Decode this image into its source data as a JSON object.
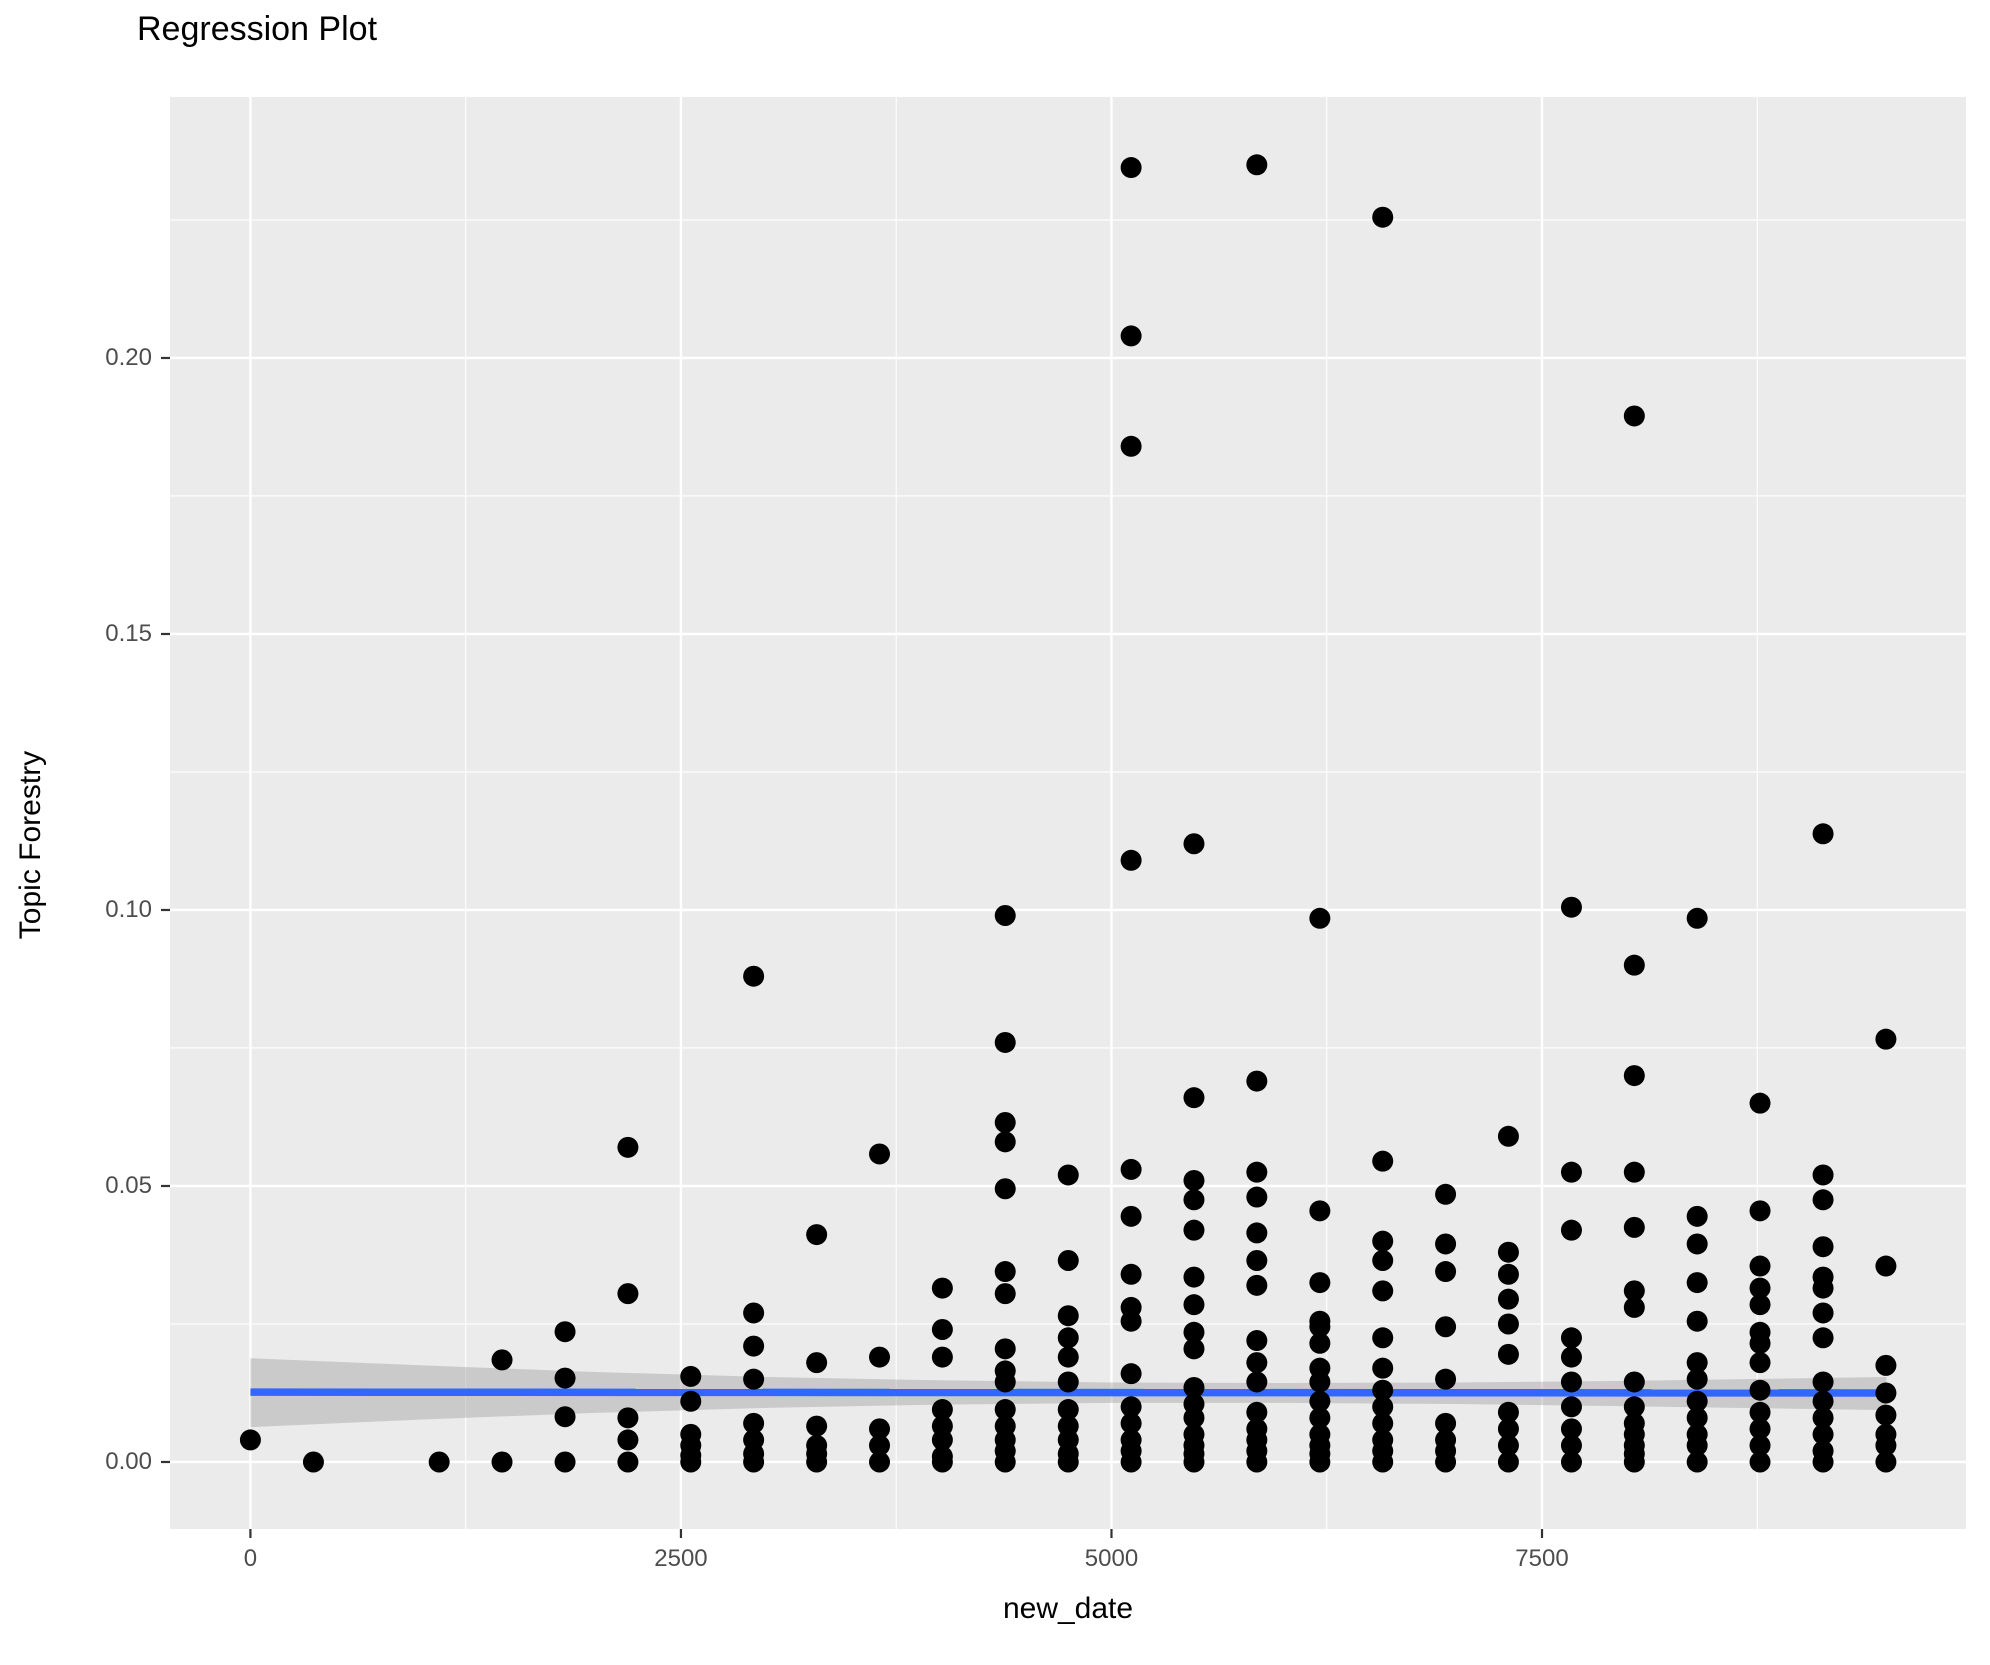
{
  "chart_data": {
    "type": "scatter",
    "title": "Regression Plot",
    "xlabel": "new_date",
    "ylabel": "Topic Forestry",
    "xlim": [
      -467,
      9962
    ],
    "ylim": [
      -0.01214,
      0.24728
    ],
    "grid": true,
    "legend": "none",
    "x_ticks": {
      "values": [
        0,
        2500,
        5000,
        7500
      ],
      "labels": [
        "0",
        "2500",
        "5000",
        "7500"
      ]
    },
    "y_ticks": {
      "values": [
        0.0,
        0.05,
        0.1,
        0.15,
        0.2
      ],
      "labels": [
        "0.00",
        "0.05",
        "0.10",
        "0.15",
        "0.20"
      ]
    },
    "x_minor_ticks": [
      1250,
      3750,
      6250,
      8750
    ],
    "y_minor_ticks": [
      0.025,
      0.075,
      0.125,
      0.175,
      0.225
    ],
    "colors": {
      "panel_bg": "#EBEBEB",
      "grid": "#FFFFFF",
      "point": "#000000",
      "smooth_line": "#3366FF",
      "ribbon": "#999999",
      "tick_text": "#4D4D4D",
      "tick_mark": "#333333",
      "title_text": "#000000"
    },
    "smooth": {
      "type": "lm",
      "line": {
        "x": [
          0,
          9500
        ],
        "y": [
          0.01265,
          0.0125
        ]
      },
      "ci": {
        "x": [
          0,
          1000,
          2000,
          3000,
          4000,
          5000,
          6000,
          7000,
          8000,
          9500
        ],
        "upper": [
          0.0188,
          0.0175,
          0.0163,
          0.0154,
          0.0148,
          0.0144,
          0.0143,
          0.0144,
          0.0147,
          0.0154
        ],
        "lower": [
          0.0063,
          0.0077,
          0.0089,
          0.0098,
          0.0104,
          0.0107,
          0.0107,
          0.0105,
          0.0101,
          0.0094
        ]
      }
    },
    "columns": [
      {
        "x": 0,
        "values": [
          0.004
        ]
      },
      {
        "x": 366,
        "values": [
          0.0
        ]
      },
      {
        "x": 1096,
        "values": [
          0.0
        ]
      },
      {
        "x": 1461,
        "values": [
          0.0185,
          0.0
        ]
      },
      {
        "x": 1827,
        "values": [
          0.0236,
          0.0152,
          0.0082,
          0.0
        ]
      },
      {
        "x": 2192,
        "values": [
          0.057,
          0.0305,
          0.008,
          0.004,
          0.0
        ]
      },
      {
        "x": 2557,
        "values": [
          0.0155,
          0.011,
          0.005,
          0.003,
          0.0012,
          0.0
        ]
      },
      {
        "x": 2922,
        "values": [
          0.088,
          0.027,
          0.021,
          0.015,
          0.007,
          0.004,
          0.0015,
          0.0
        ]
      },
      {
        "x": 3288,
        "values": [
          0.0412,
          0.018,
          0.0065,
          0.003,
          0.0015,
          0.0
        ]
      },
      {
        "x": 3653,
        "values": [
          0.0558,
          0.019,
          0.006,
          0.003,
          0.0
        ]
      },
      {
        "x": 4018,
        "values": [
          0.0315,
          0.024,
          0.019,
          0.0095,
          0.0065,
          0.004,
          0.001,
          0.0
        ]
      },
      {
        "x": 4383,
        "values": [
          0.099,
          0.076,
          0.0615,
          0.058,
          0.0495,
          0.0345,
          0.0305,
          0.0205,
          0.0165,
          0.0145,
          0.0095,
          0.0065,
          0.004,
          0.002,
          0.0
        ]
      },
      {
        "x": 4749,
        "values": [
          0.052,
          0.0365,
          0.0265,
          0.0225,
          0.019,
          0.0145,
          0.0095,
          0.0065,
          0.004,
          0.0015,
          0.0
        ]
      },
      {
        "x": 5114,
        "values": [
          0.2345,
          0.204,
          0.184,
          0.109,
          0.053,
          0.0445,
          0.034,
          0.028,
          0.0255,
          0.016,
          0.01,
          0.007,
          0.004,
          0.002,
          0.0
        ]
      },
      {
        "x": 5479,
        "values": [
          0.112,
          0.066,
          0.051,
          0.0475,
          0.042,
          0.0335,
          0.0285,
          0.0235,
          0.0205,
          0.0135,
          0.0105,
          0.008,
          0.005,
          0.003,
          0.0015,
          0.0
        ]
      },
      {
        "x": 5844,
        "values": [
          0.235,
          0.069,
          0.0525,
          0.048,
          0.0415,
          0.0365,
          0.032,
          0.022,
          0.018,
          0.0145,
          0.009,
          0.006,
          0.004,
          0.002,
          0.0
        ]
      },
      {
        "x": 6210,
        "values": [
          0.0985,
          0.0455,
          0.0325,
          0.0255,
          0.0245,
          0.0215,
          0.017,
          0.0145,
          0.011,
          0.008,
          0.005,
          0.003,
          0.0015,
          0.0
        ]
      },
      {
        "x": 6575,
        "values": [
          0.2255,
          0.0545,
          0.04,
          0.0365,
          0.031,
          0.0225,
          0.017,
          0.013,
          0.01,
          0.007,
          0.004,
          0.002,
          0.0
        ]
      },
      {
        "x": 6940,
        "values": [
          0.0485,
          0.0395,
          0.0345,
          0.0245,
          0.015,
          0.007,
          0.004,
          0.002,
          0.0
        ]
      },
      {
        "x": 7305,
        "values": [
          0.059,
          0.038,
          0.034,
          0.0295,
          0.025,
          0.0195,
          0.009,
          0.006,
          0.003,
          0.0
        ]
      },
      {
        "x": 7671,
        "values": [
          0.1005,
          0.0525,
          0.042,
          0.0225,
          0.019,
          0.0145,
          0.01,
          0.006,
          0.003,
          0.0
        ]
      },
      {
        "x": 8036,
        "values": [
          0.1895,
          0.09,
          0.07,
          0.0525,
          0.0425,
          0.031,
          0.028,
          0.0145,
          0.01,
          0.007,
          0.005,
          0.003,
          0.0015,
          0.0
        ]
      },
      {
        "x": 8401,
        "values": [
          0.0985,
          0.0445,
          0.0395,
          0.0325,
          0.0255,
          0.018,
          0.015,
          0.011,
          0.008,
          0.005,
          0.003,
          0.0
        ]
      },
      {
        "x": 8766,
        "values": [
          0.065,
          0.0455,
          0.0355,
          0.0315,
          0.0285,
          0.0235,
          0.0215,
          0.018,
          0.013,
          0.009,
          0.006,
          0.003,
          0.0
        ]
      },
      {
        "x": 9132,
        "values": [
          0.1138,
          0.052,
          0.0475,
          0.039,
          0.0335,
          0.0315,
          0.027,
          0.0225,
          0.0145,
          0.011,
          0.008,
          0.005,
          0.002,
          0.0
        ]
      },
      {
        "x": 9497,
        "values": [
          0.0766,
          0.0355,
          0.0175,
          0.0125,
          0.0085,
          0.005,
          0.003,
          0.0
        ]
      }
    ]
  }
}
